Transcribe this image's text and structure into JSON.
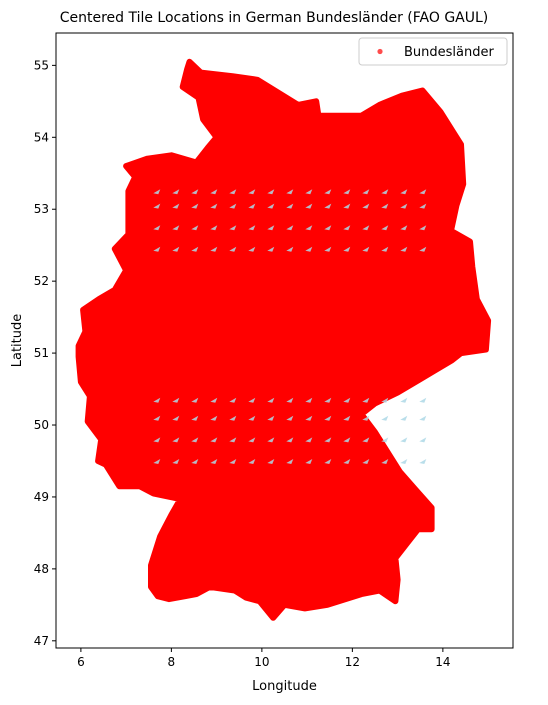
{
  "chart_data": {
    "type": "scatter",
    "title": "Centered Tile Locations in German Bundesländer (FAO GAUL)",
    "xlabel": "Longitude",
    "ylabel": "Latitude",
    "xlim": [
      5.45,
      15.55
    ],
    "ylim": [
      46.9,
      55.45
    ],
    "x_ticks": [
      6,
      8,
      10,
      12,
      14
    ],
    "y_ticks": [
      47,
      48,
      49,
      50,
      51,
      52,
      53,
      54,
      55
    ],
    "x_tick_labels": [
      "6",
      "8",
      "10",
      "12",
      "14"
    ],
    "y_tick_labels": [
      "47",
      "48",
      "49",
      "50",
      "51",
      "52",
      "53",
      "54",
      "55"
    ],
    "grid": false,
    "legend": {
      "placement": "top-right",
      "entries": [
        "Bundesländer"
      ]
    },
    "series": [
      {
        "name": "Bundesländer",
        "marker_color": "#ff0000",
        "marker_alpha": 0.7,
        "outline_polygon_lonlat": [
          [
            8.4,
            55.05
          ],
          [
            8.65,
            54.9
          ],
          [
            9.35,
            54.85
          ],
          [
            9.9,
            54.8
          ],
          [
            10.8,
            54.45
          ],
          [
            11.2,
            54.5
          ],
          [
            11.25,
            54.3
          ],
          [
            12.2,
            54.3
          ],
          [
            12.6,
            54.45
          ],
          [
            13.1,
            54.58
          ],
          [
            13.55,
            54.65
          ],
          [
            13.95,
            54.35
          ],
          [
            14.25,
            54.05
          ],
          [
            14.4,
            53.9
          ],
          [
            14.45,
            53.35
          ],
          [
            14.3,
            53.05
          ],
          [
            14.18,
            52.7
          ],
          [
            14.6,
            52.55
          ],
          [
            14.65,
            52.2
          ],
          [
            14.75,
            51.75
          ],
          [
            15.0,
            51.45
          ],
          [
            14.95,
            51.05
          ],
          [
            14.4,
            51.0
          ],
          [
            14.2,
            50.9
          ],
          [
            13.8,
            50.75
          ],
          [
            13.0,
            50.45
          ],
          [
            12.5,
            50.3
          ],
          [
            12.2,
            50.15
          ],
          [
            12.5,
            49.9
          ],
          [
            12.75,
            49.65
          ],
          [
            13.05,
            49.35
          ],
          [
            13.4,
            49.1
          ],
          [
            13.75,
            48.85
          ],
          [
            13.75,
            48.55
          ],
          [
            13.45,
            48.55
          ],
          [
            13.2,
            48.35
          ],
          [
            12.95,
            48.15
          ],
          [
            13.0,
            47.85
          ],
          [
            12.95,
            47.55
          ],
          [
            12.6,
            47.7
          ],
          [
            12.2,
            47.65
          ],
          [
            11.45,
            47.5
          ],
          [
            10.95,
            47.45
          ],
          [
            10.5,
            47.5
          ],
          [
            10.25,
            47.32
          ],
          [
            9.95,
            47.55
          ],
          [
            9.65,
            47.6
          ],
          [
            9.4,
            47.7
          ],
          [
            8.85,
            47.75
          ],
          [
            8.55,
            47.65
          ],
          [
            8.3,
            47.62
          ],
          [
            7.95,
            47.58
          ],
          [
            7.7,
            47.62
          ],
          [
            7.55,
            47.75
          ],
          [
            7.55,
            48.05
          ],
          [
            7.75,
            48.45
          ],
          [
            8.0,
            48.75
          ],
          [
            8.2,
            48.97
          ],
          [
            7.6,
            49.05
          ],
          [
            7.3,
            49.15
          ],
          [
            6.85,
            49.15
          ],
          [
            6.55,
            49.45
          ],
          [
            6.38,
            49.5
          ],
          [
            6.45,
            49.8
          ],
          [
            6.15,
            50.05
          ],
          [
            6.2,
            50.4
          ],
          [
            6.0,
            50.6
          ],
          [
            5.95,
            50.95
          ],
          [
            5.95,
            51.1
          ],
          [
            6.1,
            51.3
          ],
          [
            6.05,
            51.6
          ],
          [
            6.4,
            51.75
          ],
          [
            6.75,
            51.88
          ],
          [
            7.0,
            52.15
          ],
          [
            6.75,
            52.45
          ],
          [
            7.05,
            52.65
          ],
          [
            7.05,
            53.25
          ],
          [
            7.2,
            53.45
          ],
          [
            7.0,
            53.6
          ],
          [
            7.45,
            53.7
          ],
          [
            8.0,
            53.75
          ],
          [
            8.55,
            53.65
          ],
          [
            8.8,
            53.85
          ],
          [
            9.0,
            54.0
          ],
          [
            8.7,
            54.25
          ],
          [
            8.6,
            54.55
          ],
          [
            8.25,
            54.7
          ],
          [
            8.35,
            54.95
          ]
        ],
        "bands_lat": [
          49.5,
          49.8,
          50.1,
          50.35,
          52.45,
          52.75,
          53.05,
          53.25
        ],
        "band_lon_range": [
          7.6,
          13.6
        ]
      }
    ]
  }
}
